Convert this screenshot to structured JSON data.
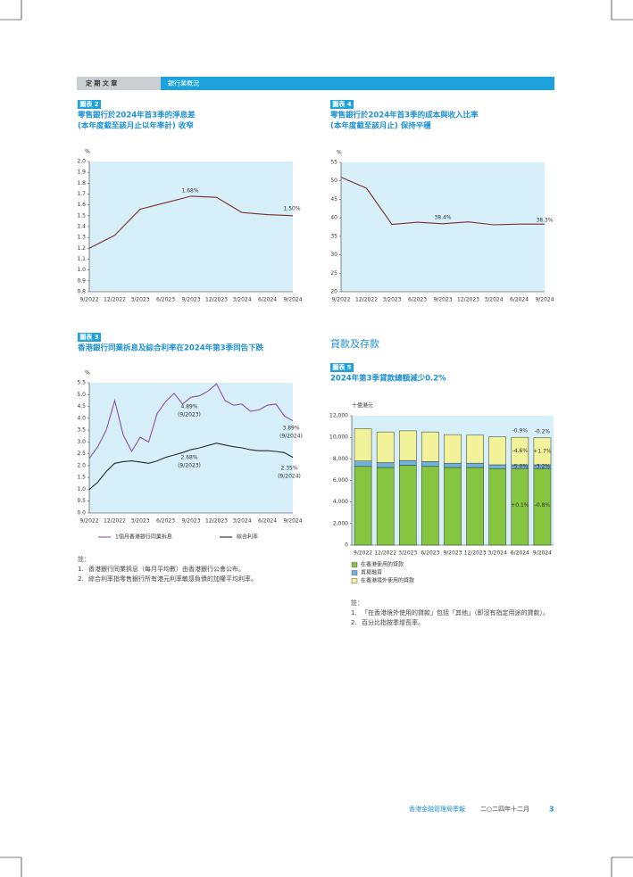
{
  "header": {
    "section": "定 期 文 章",
    "topic": "銀行業概況"
  },
  "section_heading": "貸款及存款",
  "chart_data": [
    {
      "type": "line",
      "label": "圖表 2",
      "title": [
        "零售銀行於2024年首3季的淨息差",
        "(本年度截至該月止以年率計) 收窄"
      ],
      "y_unit": "%",
      "categories": [
        "9/2022",
        "12/2022",
        "3/2023",
        "6/2023",
        "9/2023",
        "12/2023",
        "3/2024",
        "6/2024",
        "9/2024"
      ],
      "values": [
        1.2,
        1.32,
        1.56,
        1.62,
        1.68,
        1.67,
        1.53,
        1.51,
        1.5
      ],
      "color": "#7a2e2e",
      "ylim": [
        0.8,
        2.0
      ],
      "yticks": [
        0.8,
        0.9,
        {
          "value": 1,
          "label": "1.0"
        },
        1.1,
        1.2,
        1.3,
        1.4,
        1.5,
        1.6,
        1.7,
        1.8,
        1.9,
        {
          "value": 2,
          "label": "2.0"
        }
      ],
      "annotations": [
        [
          "1.68%"
        ],
        [
          "1.50%"
        ]
      ]
    },
    {
      "type": "line",
      "label": "圖表 4",
      "title": [
        "零售銀行於2024年首3季的成本與收入比率",
        "(本年度截至該月止) 保持平穩"
      ],
      "y_unit": "%",
      "categories": [
        "9/2022",
        "12/2022",
        "3/2023",
        "6/2023",
        "9/2023",
        "12/2023",
        "3/2024",
        "6/2024",
        "9/2024"
      ],
      "values": [
        51,
        48,
        38.2,
        38.8,
        38.4,
        38.9,
        38.1,
        38.3,
        38.3
      ],
      "color": "#7a2e2e",
      "ylim": [
        20,
        55
      ],
      "yticks": [
        20,
        25,
        30,
        35,
        40,
        45,
        50,
        55
      ],
      "annotations": [
        [
          "38.4%"
        ],
        [
          "38.3%"
        ]
      ]
    },
    {
      "type": "line",
      "label": "圖表 3",
      "title": [
        "香港銀行同業拆息及綜合利率在2024年第3季同告下跌"
      ],
      "y_unit": "%",
      "categories": [
        "9/2022",
        null,
        null,
        "12/2022",
        null,
        null,
        "3/2023",
        null,
        null,
        "6/2023",
        null,
        null,
        "9/2023",
        null,
        null,
        "12/2023",
        null,
        null,
        "3/2024",
        null,
        null,
        "6/2024",
        null,
        null,
        "9/2024"
      ],
      "series": [
        {
          "name": "1個月香港銀行同業拆息",
          "color": "#8e4fa8",
          "values": [
            2.3,
            2.8,
            3.5,
            4.75,
            3.3,
            2.6,
            3.2,
            3.0,
            4.2,
            4.7,
            5.05,
            4.6,
            4.89,
            4.95,
            5.15,
            5.45,
            4.75,
            4.55,
            4.6,
            4.3,
            4.35,
            4.55,
            4.6,
            4.1,
            3.89
          ]
        },
        {
          "name": "綜合利率",
          "color": "#222a33",
          "values": [
            0.99,
            1.3,
            1.75,
            2.1,
            2.17,
            2.2,
            2.15,
            2.1,
            2.2,
            2.35,
            2.45,
            2.55,
            2.68,
            2.75,
            2.85,
            2.95,
            2.87,
            2.8,
            2.75,
            2.67,
            2.63,
            2.63,
            2.6,
            2.55,
            2.35
          ]
        }
      ],
      "ylim": [
        0,
        5.5
      ],
      "yticks": [
        {
          "value": 0,
          "label": "0.0"
        },
        0.5,
        {
          "value": 1,
          "label": "1.0"
        },
        1.5,
        {
          "value": 2,
          "label": "2.0"
        },
        2.5,
        {
          "value": 3,
          "label": "3.0"
        },
        3.5,
        {
          "value": 4,
          "label": "4.0"
        },
        4.5,
        {
          "value": 5,
          "label": "5.0"
        },
        5.5
      ],
      "annotations": [
        [
          "4.89%",
          "(9/2023)"
        ],
        [
          "3.89%",
          "(9/2024)"
        ],
        [
          "2.68%",
          "(9/2023)"
        ],
        [
          "2.35%",
          "(9/2024)"
        ]
      ],
      "notes": {
        "heading": "註：",
        "items": [
          {
            "number": "1.",
            "text": "香港銀行同業拆息（每月平均數）由香港銀行公會公布。"
          },
          {
            "number": "2.",
            "text": "綜合利率指零售銀行所有港元利率敏感負債的加權平均利率。"
          }
        ]
      }
    },
    {
      "type": "stacked_bar",
      "label": "圖表 5",
      "title": [
        "2024年第3季貸款總額減少0.2%"
      ],
      "y_unit": "十億港元",
      "categories": [
        "9/2022",
        "12/2022",
        "3/2023",
        "6/2023",
        "9/2023",
        "12/2023",
        "3/2024",
        "6/2024",
        "9/2024"
      ],
      "series": [
        {
          "name": "在香港使用的貸款",
          "color": "#86c540",
          "values": [
            7300,
            7200,
            7400,
            7300,
            7200,
            7200,
            7100,
            7100,
            7100
          ]
        },
        {
          "name": "貿易融資",
          "color": "#6fb3dc",
          "values": [
            500,
            450,
            450,
            450,
            400,
            400,
            350,
            350,
            350
          ]
        },
        {
          "name": "在香港境外使用的貸款",
          "color": "#f1f29a",
          "values": [
            3000,
            2850,
            2750,
            2750,
            2650,
            2600,
            2600,
            2550,
            2500
          ]
        }
      ],
      "ylim": [
        0,
        12000
      ],
      "yticks": [
        0,
        {
          "value": 2000,
          "label": "2,000"
        },
        {
          "value": 4000,
          "label": "4,000"
        },
        {
          "value": 6000,
          "label": "6,000"
        },
        {
          "value": 8000,
          "label": "8,000"
        },
        {
          "value": 10000,
          "label": "10,000"
        },
        {
          "value": 12000,
          "label": "12,000"
        }
      ],
      "annotations": [
        [
          "-0.9%",
          "-4.6%",
          "-5.0%",
          "+0.1%"
        ],
        [
          "-0.2%",
          "+1.7%",
          "-3.2%",
          "-0.8%"
        ]
      ],
      "notes": {
        "heading": "註：",
        "items": [
          {
            "number": "1.",
            "text": "「在香港境外使用的貸款」包括「其他」（即沒有指定用途的貸款）。"
          },
          {
            "number": "2.",
            "text": "百分比指按季增長率。"
          }
        ]
      }
    }
  ],
  "footer": {
    "publication": "香港金融管理局季報",
    "date": "二○二四年十二月",
    "page": "3"
  }
}
